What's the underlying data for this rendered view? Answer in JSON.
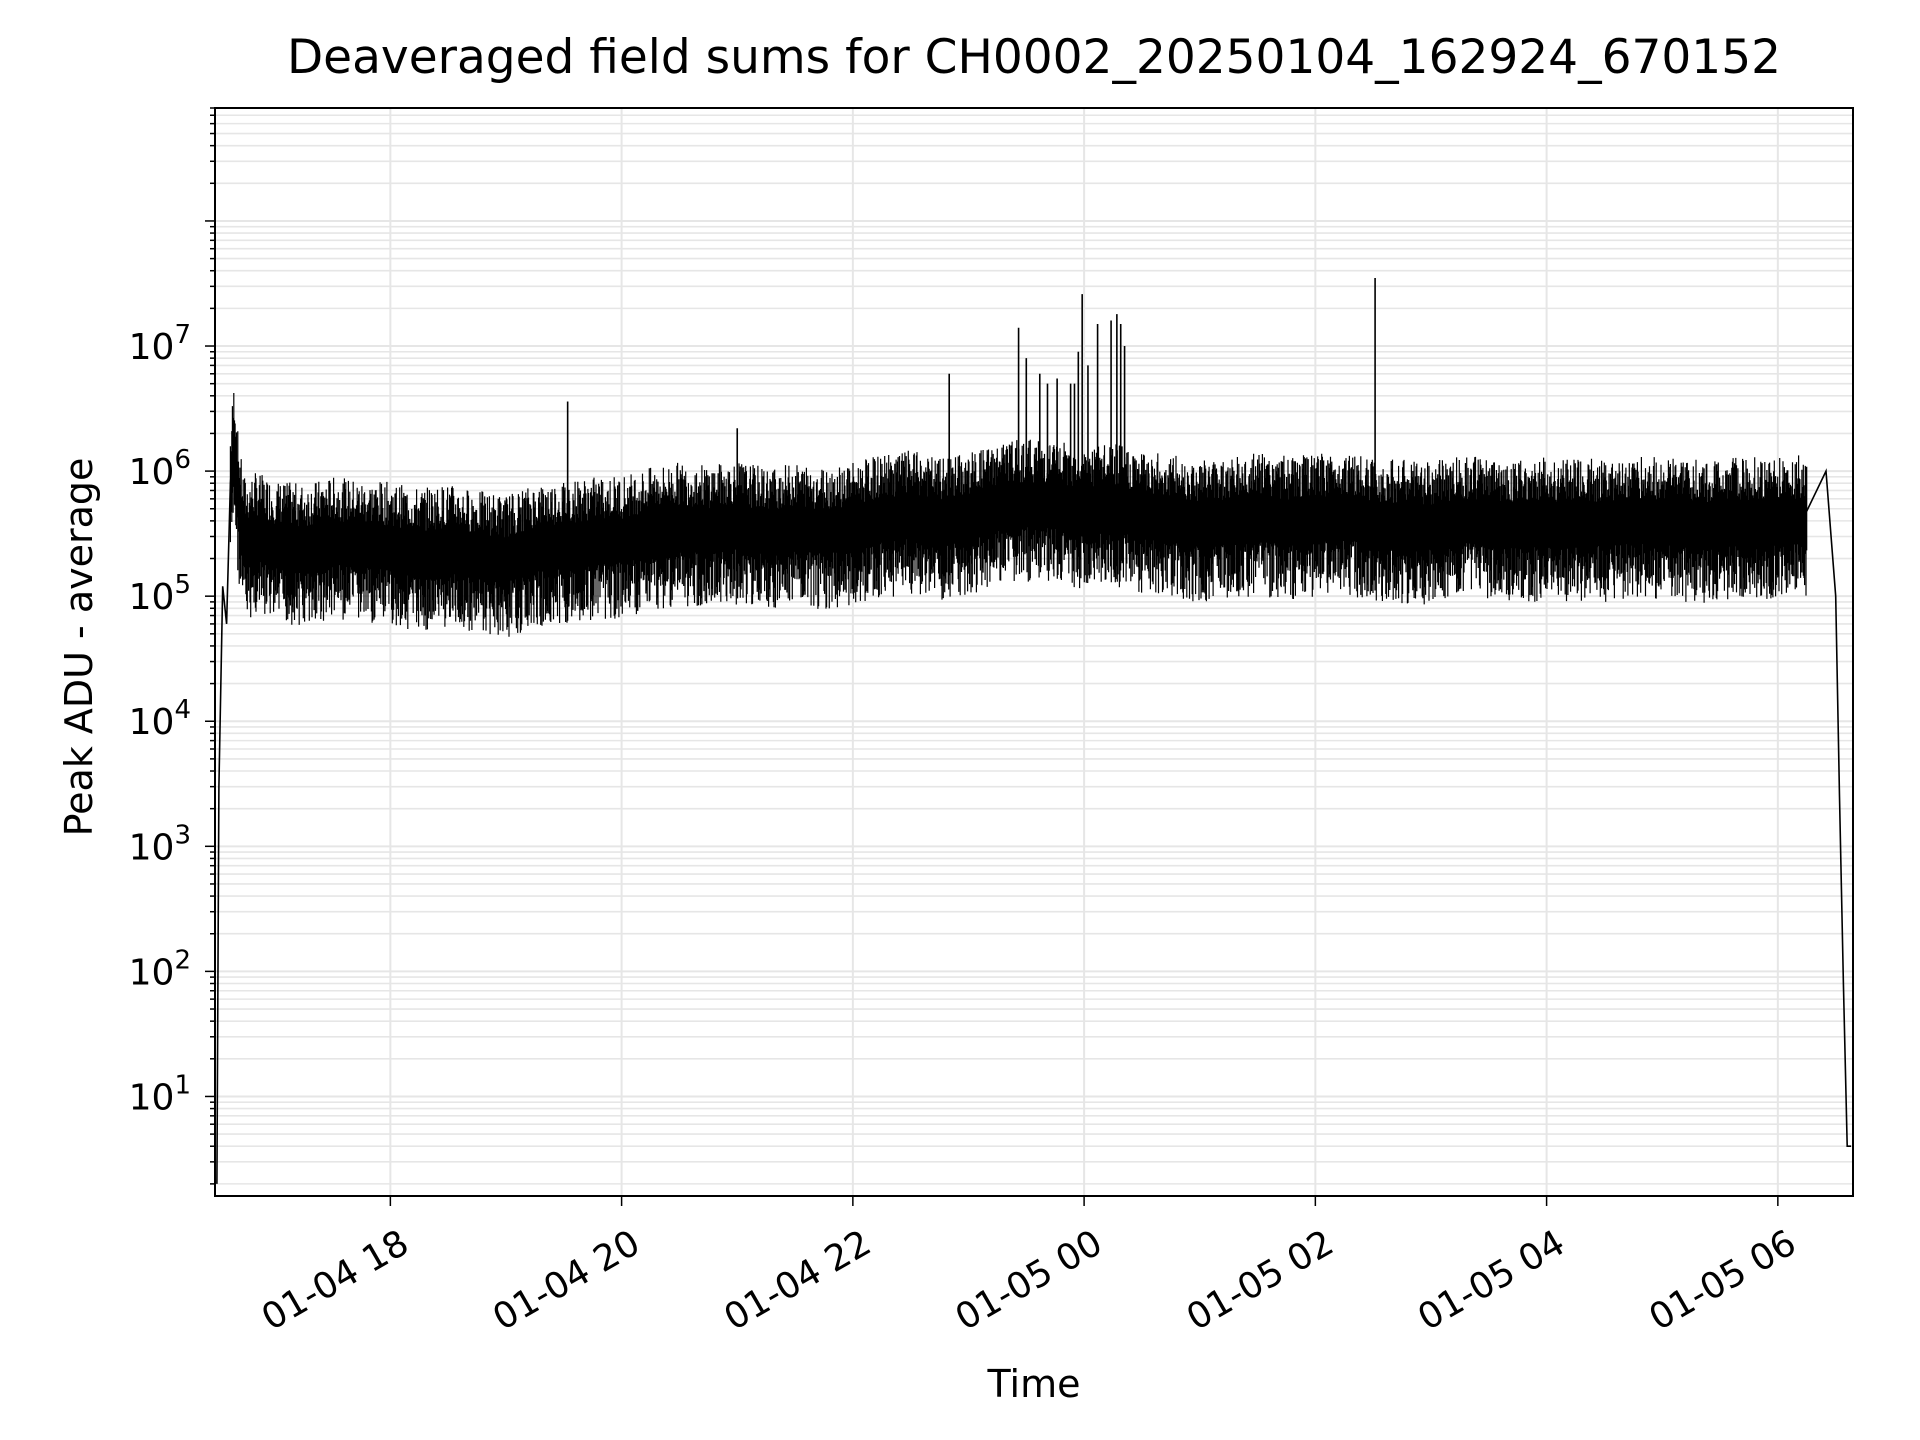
{
  "chart_data": {
    "type": "line",
    "title": "Deaveraged field sums for CH0002_20250104_162924_670152",
    "xlabel": "Time",
    "ylabel": "Peak ADU - average",
    "y_scale": "log",
    "ylim": [
      1.6,
      800000000
    ],
    "xlim": [
      "01-04 16:29",
      "01-05 06:39"
    ],
    "grid": true,
    "line_color": "#000000",
    "grid_color": "#e6e6e6",
    "x_ticks": [
      "01-04 18",
      "01-04 20",
      "01-04 22",
      "01-05 00",
      "01-05 02",
      "01-05 04",
      "01-05 06"
    ],
    "y_ticks": [
      {
        "base": "10",
        "exp": "1",
        "value": 10
      },
      {
        "base": "10",
        "exp": "2",
        "value": 100
      },
      {
        "base": "10",
        "exp": "3",
        "value": 1000
      },
      {
        "base": "10",
        "exp": "4",
        "value": 10000
      },
      {
        "base": "10",
        "exp": "5",
        "value": 100000
      },
      {
        "base": "10",
        "exp": "6",
        "value": 1000000
      },
      {
        "base": "10",
        "exp": "7",
        "value": 10000000
      }
    ],
    "series": [
      {
        "time": [
          "01-04 16:30",
          "01-04 16:31",
          "01-04 16:33",
          "01-04 16:35",
          "01-04 16:37",
          "01-04 16:39",
          "01-04 16:41",
          "01-04 16:43",
          "01-04 16:45",
          "01-04 16:50",
          "01-04 17:00",
          "01-04 17:15",
          "01-04 17:30",
          "01-04 17:45",
          "01-04 18:00",
          "01-04 18:15",
          "01-04 18:30",
          "01-04 18:45",
          "01-04 19:00",
          "01-04 19:15",
          "01-04 19:30",
          "01-04 19:45",
          "01-04 20:00",
          "01-04 20:15",
          "01-04 20:30",
          "01-04 20:45",
          "01-04 21:00",
          "01-04 21:15",
          "01-04 21:30",
          "01-04 21:45",
          "01-04 22:00",
          "01-04 22:15",
          "01-04 22:30",
          "01-04 22:45",
          "01-04 23:00",
          "01-04 23:15",
          "01-04 23:30",
          "01-04 23:45",
          "01-05 00:00",
          "01-05 00:15",
          "01-05 00:30",
          "01-05 00:45",
          "01-05 01:00",
          "01-05 01:15",
          "01-05 01:30",
          "01-05 01:45",
          "01-05 02:00",
          "01-05 02:15",
          "01-05 02:30",
          "01-05 02:45",
          "01-05 03:00",
          "01-05 03:15",
          "01-05 03:30",
          "01-05 03:45",
          "01-05 04:00",
          "01-05 04:15",
          "01-05 04:30",
          "01-05 04:45",
          "01-05 05:00",
          "01-05 05:15",
          "01-05 05:30",
          "01-05 05:45",
          "01-05 06:00",
          "01-05 06:15",
          "01-05 06:25",
          "01-05 06:30",
          "01-05 06:32",
          "01-05 06:34",
          "01-05 06:36",
          "01-05 06:38"
        ],
        "values": [
          2,
          3000,
          120000,
          60000,
          800000,
          2000000,
          700000,
          400000,
          300000,
          350000,
          300000,
          280000,
          320000,
          300000,
          290000,
          260000,
          280000,
          250000,
          230000,
          280000,
          300000,
          320000,
          330000,
          380000,
          420000,
          400000,
          430000,
          380000,
          410000,
          390000,
          420000,
          480000,
          520000,
          450000,
          500000,
          600000,
          650000,
          620000,
          550000,
          600000,
          520000,
          480000,
          450000,
          460000,
          500000,
          470000,
          480000,
          520000,
          450000,
          440000,
          420000,
          480000,
          450000,
          430000,
          460000,
          440000,
          450000,
          470000,
          460000,
          440000,
          450000,
          460000,
          470000,
          480000,
          1000000,
          100000,
          2500,
          80,
          4,
          4
        ]
      }
    ],
    "spikes": [
      {
        "time": "01-04 19:32",
        "value": 3600000
      },
      {
        "time": "01-04 21:00",
        "value": 2200000
      },
      {
        "time": "01-04 22:50",
        "value": 6000000
      },
      {
        "time": "01-04 23:26",
        "value": 14000000
      },
      {
        "time": "01-04 23:30",
        "value": 8000000
      },
      {
        "time": "01-04 23:37",
        "value": 6000000
      },
      {
        "time": "01-04 23:41",
        "value": 5000000
      },
      {
        "time": "01-04 23:46",
        "value": 5500000
      },
      {
        "time": "01-04 23:53",
        "value": 5000000
      },
      {
        "time": "01-04 23:55",
        "value": 5000000
      },
      {
        "time": "01-04 23:57",
        "value": 9000000
      },
      {
        "time": "01-04 23:59",
        "value": 26000000
      },
      {
        "time": "01-05 00:02",
        "value": 7000000
      },
      {
        "time": "01-05 00:07",
        "value": 15000000
      },
      {
        "time": "01-05 00:14",
        "value": 16000000
      },
      {
        "time": "01-05 00:17",
        "value": 18000000
      },
      {
        "time": "01-05 00:19",
        "value": 15000000
      },
      {
        "time": "01-05 00:21",
        "value": 10000000
      },
      {
        "time": "01-05 02:31",
        "value": 35000000
      }
    ]
  }
}
